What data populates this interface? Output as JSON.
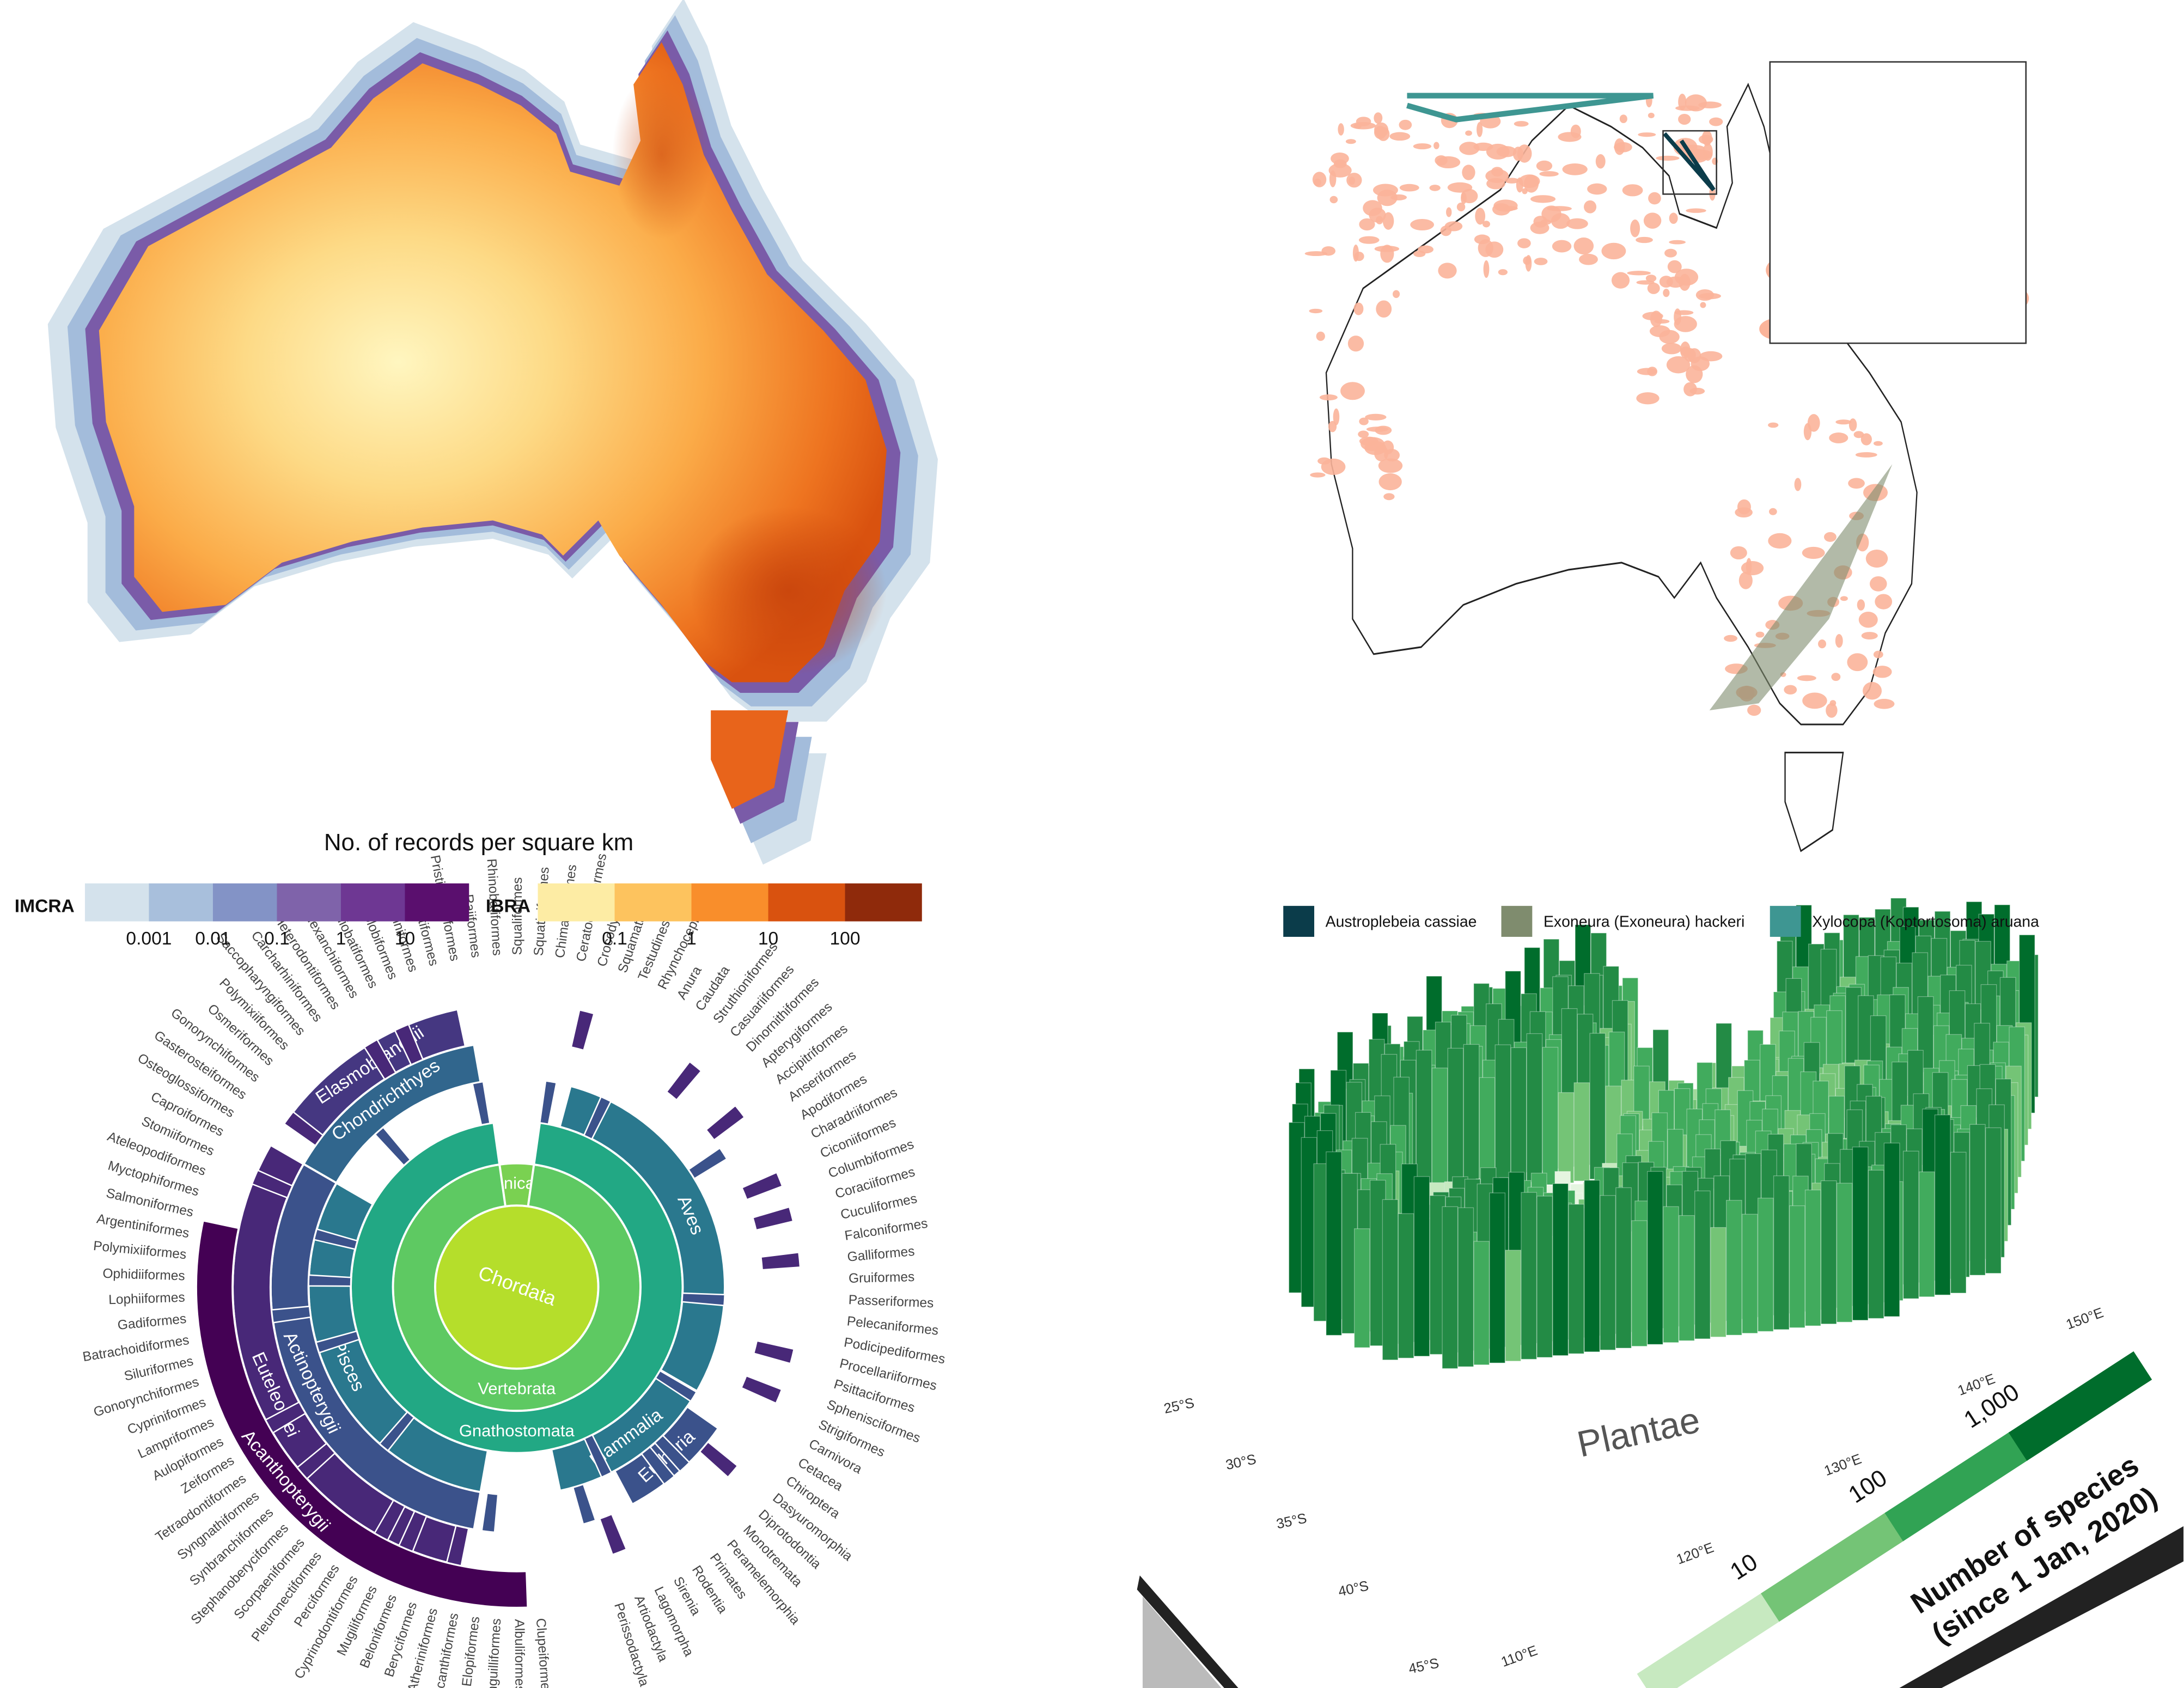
{
  "top_left": {
    "title": "No. of records per square km",
    "imcra": {
      "label": "IMCRA",
      "ticks": [
        0.001,
        0.01,
        0.1,
        1,
        10
      ]
    },
    "ibra": {
      "label": "IBRA",
      "ticks": [
        0.1,
        1,
        10,
        100
      ]
    }
  },
  "top_right": {
    "legend": [
      {
        "name": "Austroplebeia cassiae",
        "color": "#0b3c4a"
      },
      {
        "name": "Exoneura (Exoneura) hackeri",
        "color": "#7f8c6e"
      },
      {
        "name": "Xylocopa (Koptortosoma) aruana",
        "color": "#3e9692"
      }
    ]
  },
  "sunburst": {
    "center": "Chordata",
    "segments": [
      "Tunicata",
      "Vertebrata",
      "Gnathostomata",
      "Pisces",
      "Aves",
      "Mammalia",
      "Chondrichthyes",
      "Actinopterygii",
      "Eutheria",
      "Elasmobranchii",
      "Euteleostei",
      "Acanthopterygii"
    ],
    "orders": [
      "Clupeiformes",
      "Albuliformes",
      "Anguilliformes",
      "Elopiformes",
      "Notacanthiformes",
      "Atheriniformes",
      "Beryciformes",
      "Beloniformes",
      "Mugiliformes",
      "Cyprinodontiformes",
      "Perciformes",
      "Pleuronectiformes",
      "Scorpaeniformes",
      "Stephanoberyciformes",
      "Synbranchiformes",
      "Syngnathiformes",
      "Tetraodontiformes",
      "Zeiformes",
      "Aulopiformes",
      "Lampriformes",
      "Cypriniformes",
      "Gonorynchiformes",
      "Siluriformes",
      "Batrachoidiformes",
      "Gadiformes",
      "Lophiiformes",
      "Ophidiiformes",
      "Polymixiiformes",
      "Argentiniformes",
      "Salmoniformes",
      "Myctophiformes",
      "Ateleopodiformes",
      "Stomiiformes",
      "Caproiformes",
      "Osteoglossiformes",
      "Gasterosteiformes",
      "Gonorynchiformes",
      "Osmeriformes",
      "Polymixiiformes",
      "Saccopharyngiformes",
      "Carcharhiniformes",
      "Heterodontiformes",
      "Hexanchiformes",
      "Myliobatiformes",
      "Orectolobiformes",
      "Lamniformes",
      "Pristiformes",
      "Pristiophoriformes",
      "Rajiformes",
      "Rhinobatiformes",
      "Squaliformes",
      "Squatiniformes",
      "Chimaeriformes",
      "Ceratodontiformes",
      "Crocodylia",
      "Squamata",
      "Testudines",
      "Rhynchocephalia",
      "Anura",
      "Caudata",
      "Struthioniformes",
      "Casuariiformes",
      "Dinornithiformes",
      "Apterygiformes",
      "Accipitriformes",
      "Anseriformes",
      "Apodiformes",
      "Charadriiformes",
      "Ciconiiformes",
      "Columbiformes",
      "Coraciiformes",
      "Cuculiformes",
      "Falconiformes",
      "Galliformes",
      "Gruiformes",
      "Passeriformes",
      "Pelecaniformes",
      "Podicipediformes",
      "Procellariiformes",
      "Psittaciformes",
      "Sphenisciformes",
      "Strigiformes",
      "Carnivora",
      "Cetacea",
      "Chiroptera",
      "Dasyuromorphia",
      "Diprotodontia",
      "Monotremata",
      "Peramelemorphia",
      "Primates",
      "Rodentia",
      "Sirenia",
      "Lagomorpha",
      "Artiodactyla",
      "Perissodactyla"
    ]
  },
  "bottom_right": {
    "title": "Plantae",
    "legend_title": [
      "Number of species",
      "(since 1 Jan, 2020)"
    ],
    "legend_ticks": [
      "10",
      "100",
      "1,000"
    ],
    "lat_labels": [
      "25°S",
      "30°S",
      "35°S",
      "40°S",
      "45°S"
    ],
    "lon_labels": [
      "110°E",
      "120°E",
      "130°E",
      "140°E",
      "150°E"
    ]
  }
}
